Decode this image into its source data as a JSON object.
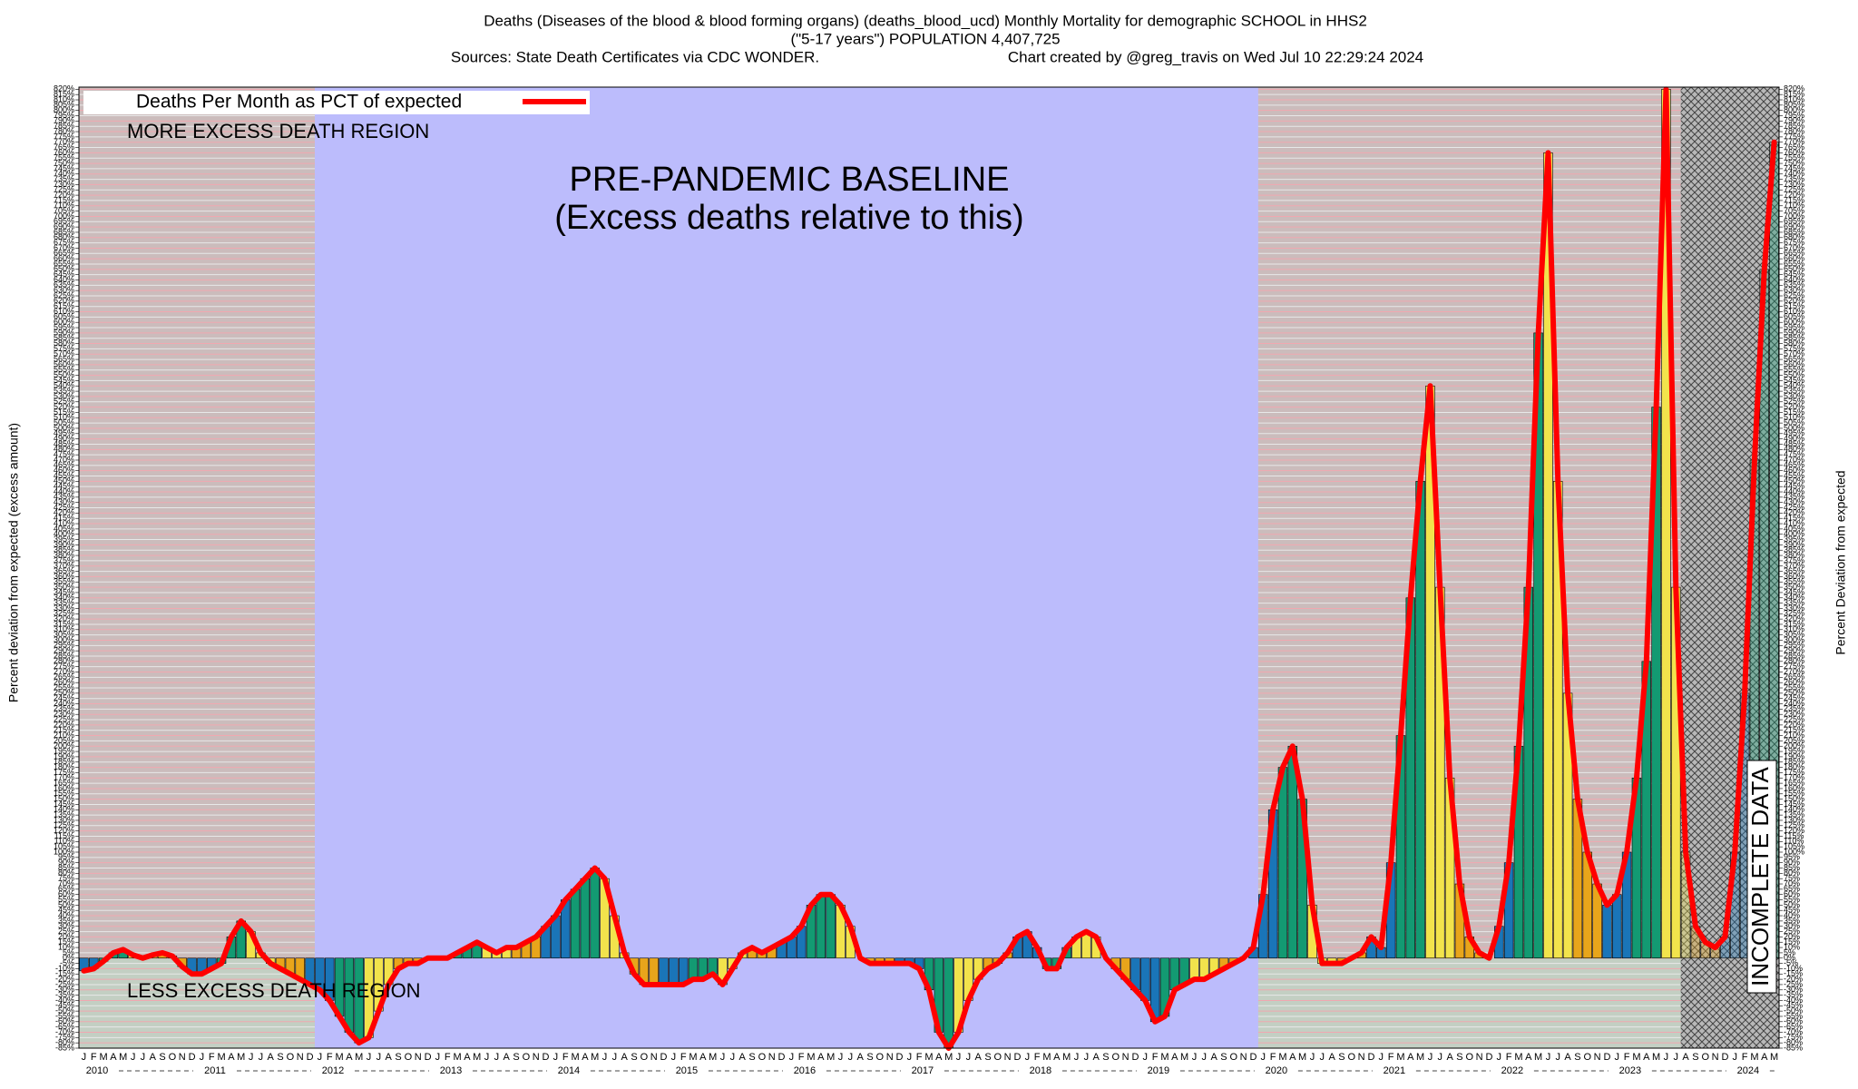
{
  "chart_data": {
    "type": "bar",
    "title": "Deaths (Diseases of the blood & blood forming organs) (deaths_blood_ucd) Monthly Mortality for demographic SCHOOL in HHS2",
    "subtitle": "(\"5-17 years\") POPULATION 4,407,725",
    "source": "Sources: State Death Certificates via CDC WONDER.",
    "credit": "Chart created by @greg_travis on Wed Jul 10 22:29:24 2024",
    "ylabel": "Percent deviation from expected (excess amount)",
    "y2label": "Percent Deviation from expected",
    "legend": "Deaths Per Month as PCT of expected",
    "line_color": "#ff0000",
    "annotations": {
      "more": "MORE EXCESS DEATH REGION",
      "less": "LESS EXCESS DEATH REGION",
      "baseline": "PRE-PANDEMIC BASELINE",
      "baseline_note": "(Excess deaths relative to this)",
      "incomplete": "INCOMPLETE DATA"
    },
    "month_colors": [
      "#1a75b8",
      "#1a75b8",
      "#139a72",
      "#139a72",
      "#139a72",
      "#f2e34c",
      "#f2e34c",
      "#f2e34c",
      "#e8a51b",
      "#e8a51b",
      "#e8a51b",
      "#1a75b8"
    ],
    "years": [
      "2010",
      "2011",
      "2012",
      "2013",
      "2014",
      "2015",
      "2016",
      "2017",
      "2018",
      "2019",
      "2020",
      "2021",
      "2022",
      "2023",
      "2024"
    ],
    "categories": [
      "J",
      "F",
      "M",
      "A",
      "M",
      "J",
      "J",
      "A",
      "S",
      "O",
      "N",
      "D",
      "J",
      "F",
      "M",
      "A",
      "M",
      "J",
      "J",
      "A",
      "S",
      "O",
      "N",
      "D",
      "J",
      "F",
      "M",
      "A",
      "M",
      "J",
      "J",
      "A",
      "S",
      "O",
      "N",
      "D",
      "J",
      "F",
      "M",
      "A",
      "M",
      "J",
      "J",
      "A",
      "S",
      "O",
      "N",
      "D",
      "J",
      "F",
      "M",
      "A",
      "M",
      "J",
      "J",
      "A",
      "S",
      "O",
      "N",
      "D",
      "J",
      "F",
      "M",
      "A",
      "M",
      "J",
      "J",
      "A",
      "S",
      "O",
      "N",
      "D",
      "J",
      "F",
      "M",
      "A",
      "M",
      "J",
      "J",
      "A",
      "S",
      "O",
      "N",
      "D",
      "J",
      "F",
      "M",
      "A",
      "M",
      "J",
      "J",
      "A",
      "S",
      "O",
      "N",
      "D",
      "J",
      "F",
      "M",
      "A",
      "M",
      "J",
      "J",
      "A",
      "S",
      "O",
      "N",
      "D",
      "J",
      "F",
      "M",
      "A",
      "M",
      "J",
      "J",
      "A",
      "S",
      "O",
      "N",
      "D",
      "J",
      "F",
      "M",
      "A",
      "M",
      "J",
      "J",
      "A",
      "S",
      "O",
      "N",
      "D",
      "J",
      "F",
      "M",
      "A",
      "M",
      "J",
      "J",
      "A",
      "S",
      "O",
      "N",
      "D",
      "J",
      "F",
      "M",
      "A",
      "M",
      "J",
      "J",
      "A",
      "S",
      "O",
      "N",
      "D",
      "J",
      "F",
      "M",
      "A",
      "M",
      "J",
      "J",
      "A",
      "S",
      "O",
      "N",
      "D",
      "J",
      "F",
      "M",
      "A",
      "M"
    ],
    "values": [
      -12,
      -10,
      -3,
      5,
      8,
      3,
      0,
      3,
      5,
      2,
      -8,
      -15,
      -15,
      -10,
      -5,
      20,
      35,
      25,
      5,
      -5,
      -10,
      -15,
      -20,
      -25,
      -30,
      -40,
      -55,
      -70,
      -80,
      -75,
      -50,
      -25,
      -10,
      -5,
      -5,
      0,
      0,
      0,
      5,
      10,
      15,
      10,
      5,
      10,
      10,
      15,
      20,
      30,
      40,
      55,
      65,
      75,
      85,
      75,
      40,
      5,
      -15,
      -25,
      -25,
      -25,
      -25,
      -25,
      -20,
      -20,
      -15,
      -25,
      -10,
      5,
      10,
      5,
      10,
      15,
      20,
      30,
      50,
      60,
      60,
      50,
      30,
      0,
      -5,
      -5,
      -5,
      -5,
      -5,
      -10,
      -30,
      -70,
      -85,
      -70,
      -40,
      -20,
      -10,
      -5,
      5,
      20,
      25,
      10,
      -10,
      -10,
      10,
      20,
      25,
      20,
      0,
      -10,
      -20,
      -30,
      -40,
      -60,
      -55,
      -30,
      -25,
      -20,
      -20,
      -15,
      -10,
      -5,
      0,
      10,
      60,
      140,
      180,
      200,
      150,
      50,
      -5,
      -5,
      -5,
      0,
      5,
      20,
      10,
      90,
      210,
      340,
      450,
      540,
      350,
      170,
      70,
      20,
      5,
      0,
      30,
      90,
      200,
      350,
      590,
      760,
      450,
      250,
      150,
      100,
      70,
      50,
      60,
      100,
      170,
      280,
      520,
      820,
      350,
      100,
      30,
      15,
      10,
      20,
      100,
      250,
      470,
      650,
      770
    ],
    "ylim": [
      -85,
      822
    ],
    "yticks": [
      {
        "value": -85,
        "label": "-85%"
      },
      {
        "value": -80,
        "label": "-80%"
      },
      {
        "value": -75,
        "label": "-75%"
      },
      {
        "value": -70,
        "label": "-70%"
      },
      {
        "value": -65,
        "label": "-65%"
      },
      {
        "value": -60,
        "label": "-60%"
      },
      {
        "value": -55,
        "label": "-55%"
      },
      {
        "value": -50,
        "label": "-50%"
      },
      {
        "value": -45,
        "label": "-45%"
      },
      {
        "value": -40,
        "label": "-40%"
      },
      {
        "value": -35,
        "label": "-35%"
      },
      {
        "value": -30,
        "label": "-30%"
      },
      {
        "value": -25,
        "label": "-25%"
      },
      {
        "value": -20,
        "label": "-20%"
      },
      {
        "value": -15,
        "label": "-15%"
      },
      {
        "value": -10,
        "label": "-10%"
      },
      {
        "value": -5,
        "label": "-5%"
      },
      {
        "value": 0,
        "label": "0%"
      },
      {
        "value": 5,
        "label": "5%"
      },
      {
        "value": 10,
        "label": "10%"
      },
      {
        "value": 15,
        "label": "15%"
      },
      {
        "value": 20,
        "label": "20%"
      },
      {
        "value": 25,
        "label": "25%"
      },
      {
        "value": 30,
        "label": "30%"
      },
      {
        "value": 35,
        "label": "35%"
      },
      {
        "value": 40,
        "label": "40%"
      },
      {
        "value": 45,
        "label": "45%"
      },
      {
        "value": 50,
        "label": "50%"
      },
      {
        "value": 55,
        "label": "55%"
      },
      {
        "value": 60,
        "label": "60%"
      },
      {
        "value": 65,
        "label": "65%"
      },
      {
        "value": 70,
        "label": "70%"
      },
      {
        "value": 75,
        "label": "75%"
      },
      {
        "value": 80,
        "label": "80%"
      },
      {
        "value": 85,
        "label": "85%"
      },
      {
        "value": 90,
        "label": "90%"
      },
      {
        "value": 95,
        "label": "95%"
      },
      {
        "value": 100,
        "label": "100%"
      },
      {
        "value": 105,
        "label": "105%"
      },
      {
        "value": 110,
        "label": "110%"
      },
      {
        "value": 115,
        "label": "115%"
      },
      {
        "value": 120,
        "label": "120%"
      },
      {
        "value": 125,
        "label": "125%"
      },
      {
        "value": 130,
        "label": "130%"
      },
      {
        "value": 135,
        "label": "135%"
      },
      {
        "value": 140,
        "label": "140%"
      },
      {
        "value": 145,
        "label": "145%"
      },
      {
        "value": 150,
        "label": "150%"
      },
      {
        "value": 155,
        "label": "155%"
      },
      {
        "value": 160,
        "label": "160%"
      },
      {
        "value": 165,
        "label": "165%"
      },
      {
        "value": 170,
        "label": "170%"
      },
      {
        "value": 175,
        "label": "175%"
      },
      {
        "value": 180,
        "label": "180%"
      },
      {
        "value": 185,
        "label": "185%"
      },
      {
        "value": 190,
        "label": "190%"
      },
      {
        "value": 195,
        "label": "195%"
      },
      {
        "value": 200,
        "label": "200%"
      },
      {
        "value": 205,
        "label": "205%"
      },
      {
        "value": 210,
        "label": "210%"
      },
      {
        "value": 215,
        "label": "215%"
      },
      {
        "value": 220,
        "label": "220%"
      },
      {
        "value": 225,
        "label": "225%"
      },
      {
        "value": 230,
        "label": "230%"
      },
      {
        "value": 235,
        "label": "235%"
      },
      {
        "value": 240,
        "label": "240%"
      },
      {
        "value": 245,
        "label": "245%"
      },
      {
        "value": 250,
        "label": "250%"
      },
      {
        "value": 255,
        "label": "255%"
      },
      {
        "value": 260,
        "label": "260%"
      },
      {
        "value": 265,
        "label": "265%"
      },
      {
        "value": 270,
        "label": "270%"
      },
      {
        "value": 275,
        "label": "275%"
      },
      {
        "value": 280,
        "label": "280%"
      },
      {
        "value": 285,
        "label": "285%"
      },
      {
        "value": 290,
        "label": "290%"
      },
      {
        "value": 295,
        "label": "295%"
      },
      {
        "value": 300,
        "label": "300%"
      },
      {
        "value": 305,
        "label": "305%"
      },
      {
        "value": 310,
        "label": "310%"
      },
      {
        "value": 315,
        "label": "315%"
      },
      {
        "value": 320,
        "label": "320%"
      },
      {
        "value": 325,
        "label": "325%"
      },
      {
        "value": 330,
        "label": "330%"
      },
      {
        "value": 335,
        "label": "335%"
      },
      {
        "value": 340,
        "label": "340%"
      },
      {
        "value": 345,
        "label": "345%"
      },
      {
        "value": 350,
        "label": "350%"
      },
      {
        "value": 355,
        "label": "355%"
      },
      {
        "value": 360,
        "label": "360%"
      },
      {
        "value": 365,
        "label": "365%"
      },
      {
        "value": 370,
        "label": "370%"
      },
      {
        "value": 375,
        "label": "375%"
      },
      {
        "value": 380,
        "label": "380%"
      },
      {
        "value": 385,
        "label": "385%"
      },
      {
        "value": 390,
        "label": "390%"
      },
      {
        "value": 395,
        "label": "395%"
      },
      {
        "value": 400,
        "label": "400%"
      },
      {
        "value": 405,
        "label": "405%"
      },
      {
        "value": 410,
        "label": "410%"
      },
      {
        "value": 415,
        "label": "415%"
      },
      {
        "value": 420,
        "label": "420%"
      },
      {
        "value": 425,
        "label": "425%"
      },
      {
        "value": 430,
        "label": "430%"
      },
      {
        "value": 435,
        "label": "435%"
      },
      {
        "value": 440,
        "label": "440%"
      },
      {
        "value": 445,
        "label": "445%"
      },
      {
        "value": 450,
        "label": "450%"
      },
      {
        "value": 455,
        "label": "455%"
      },
      {
        "value": 460,
        "label": "460%"
      },
      {
        "value": 465,
        "label": "465%"
      },
      {
        "value": 470,
        "label": "470%"
      },
      {
        "value": 475,
        "label": "475%"
      },
      {
        "value": 480,
        "label": "480%"
      },
      {
        "value": 485,
        "label": "485%"
      },
      {
        "value": 490,
        "label": "490%"
      },
      {
        "value": 495,
        "label": "495%"
      },
      {
        "value": 500,
        "label": "500%"
      },
      {
        "value": 505,
        "label": "505%"
      },
      {
        "value": 510,
        "label": "510%"
      },
      {
        "value": 515,
        "label": "515%"
      },
      {
        "value": 520,
        "label": "520%"
      },
      {
        "value": 525,
        "label": "525%"
      },
      {
        "value": 530,
        "label": "530%"
      },
      {
        "value": 535,
        "label": "535%"
      },
      {
        "value": 540,
        "label": "540%"
      },
      {
        "value": 545,
        "label": "545%"
      },
      {
        "value": 550,
        "label": "550%"
      },
      {
        "value": 555,
        "label": "555%"
      },
      {
        "value": 560,
        "label": "560%"
      },
      {
        "value": 565,
        "label": "565%"
      },
      {
        "value": 570,
        "label": "570%"
      },
      {
        "value": 575,
        "label": "575%"
      },
      {
        "value": 580,
        "label": "580%"
      },
      {
        "value": 585,
        "label": "585%"
      },
      {
        "value": 590,
        "label": "590%"
      },
      {
        "value": 595,
        "label": "595%"
      },
      {
        "value": 600,
        "label": "600%"
      },
      {
        "value": 605,
        "label": "605%"
      },
      {
        "value": 610,
        "label": "610%"
      },
      {
        "value": 615,
        "label": "615%"
      },
      {
        "value": 620,
        "label": "620%"
      },
      {
        "value": 625,
        "label": "625%"
      },
      {
        "value": 630,
        "label": "630%"
      },
      {
        "value": 635,
        "label": "635%"
      },
      {
        "value": 640,
        "label": "640%"
      },
      {
        "value": 645,
        "label": "645%"
      },
      {
        "value": 650,
        "label": "650%"
      },
      {
        "value": 655,
        "label": "655%"
      },
      {
        "value": 660,
        "label": "660%"
      },
      {
        "value": 665,
        "label": "665%"
      },
      {
        "value": 670,
        "label": "670%"
      },
      {
        "value": 675,
        "label": "675%"
      },
      {
        "value": 680,
        "label": "680%"
      },
      {
        "value": 685,
        "label": "685%"
      },
      {
        "value": 690,
        "label": "690%"
      },
      {
        "value": 695,
        "label": "695%"
      },
      {
        "value": 700,
        "label": "700%"
      },
      {
        "value": 705,
        "label": "705%"
      },
      {
        "value": 710,
        "label": "710%"
      },
      {
        "value": 715,
        "label": "715%"
      },
      {
        "value": 720,
        "label": "720%"
      },
      {
        "value": 725,
        "label": "725%"
      },
      {
        "value": 730,
        "label": "730%"
      },
      {
        "value": 735,
        "label": "735%"
      },
      {
        "value": 740,
        "label": "740%"
      },
      {
        "value": 745,
        "label": "745%"
      },
      {
        "value": 750,
        "label": "750%"
      },
      {
        "value": 755,
        "label": "755%"
      },
      {
        "value": 760,
        "label": "760%"
      },
      {
        "value": 765,
        "label": "765%"
      },
      {
        "value": 770,
        "label": "770%"
      },
      {
        "value": 775,
        "label": "775%"
      },
      {
        "value": 780,
        "label": "780%"
      },
      {
        "value": 785,
        "label": "785%"
      },
      {
        "value": 790,
        "label": "790%"
      },
      {
        "value": 795,
        "label": "795%"
      },
      {
        "value": 800,
        "label": "800%"
      },
      {
        "value": 805,
        "label": "805%"
      },
      {
        "value": 810,
        "label": "810%"
      },
      {
        "value": 815,
        "label": "815%"
      },
      {
        "value": 820,
        "label": "820%"
      }
    ],
    "grid": true
  }
}
